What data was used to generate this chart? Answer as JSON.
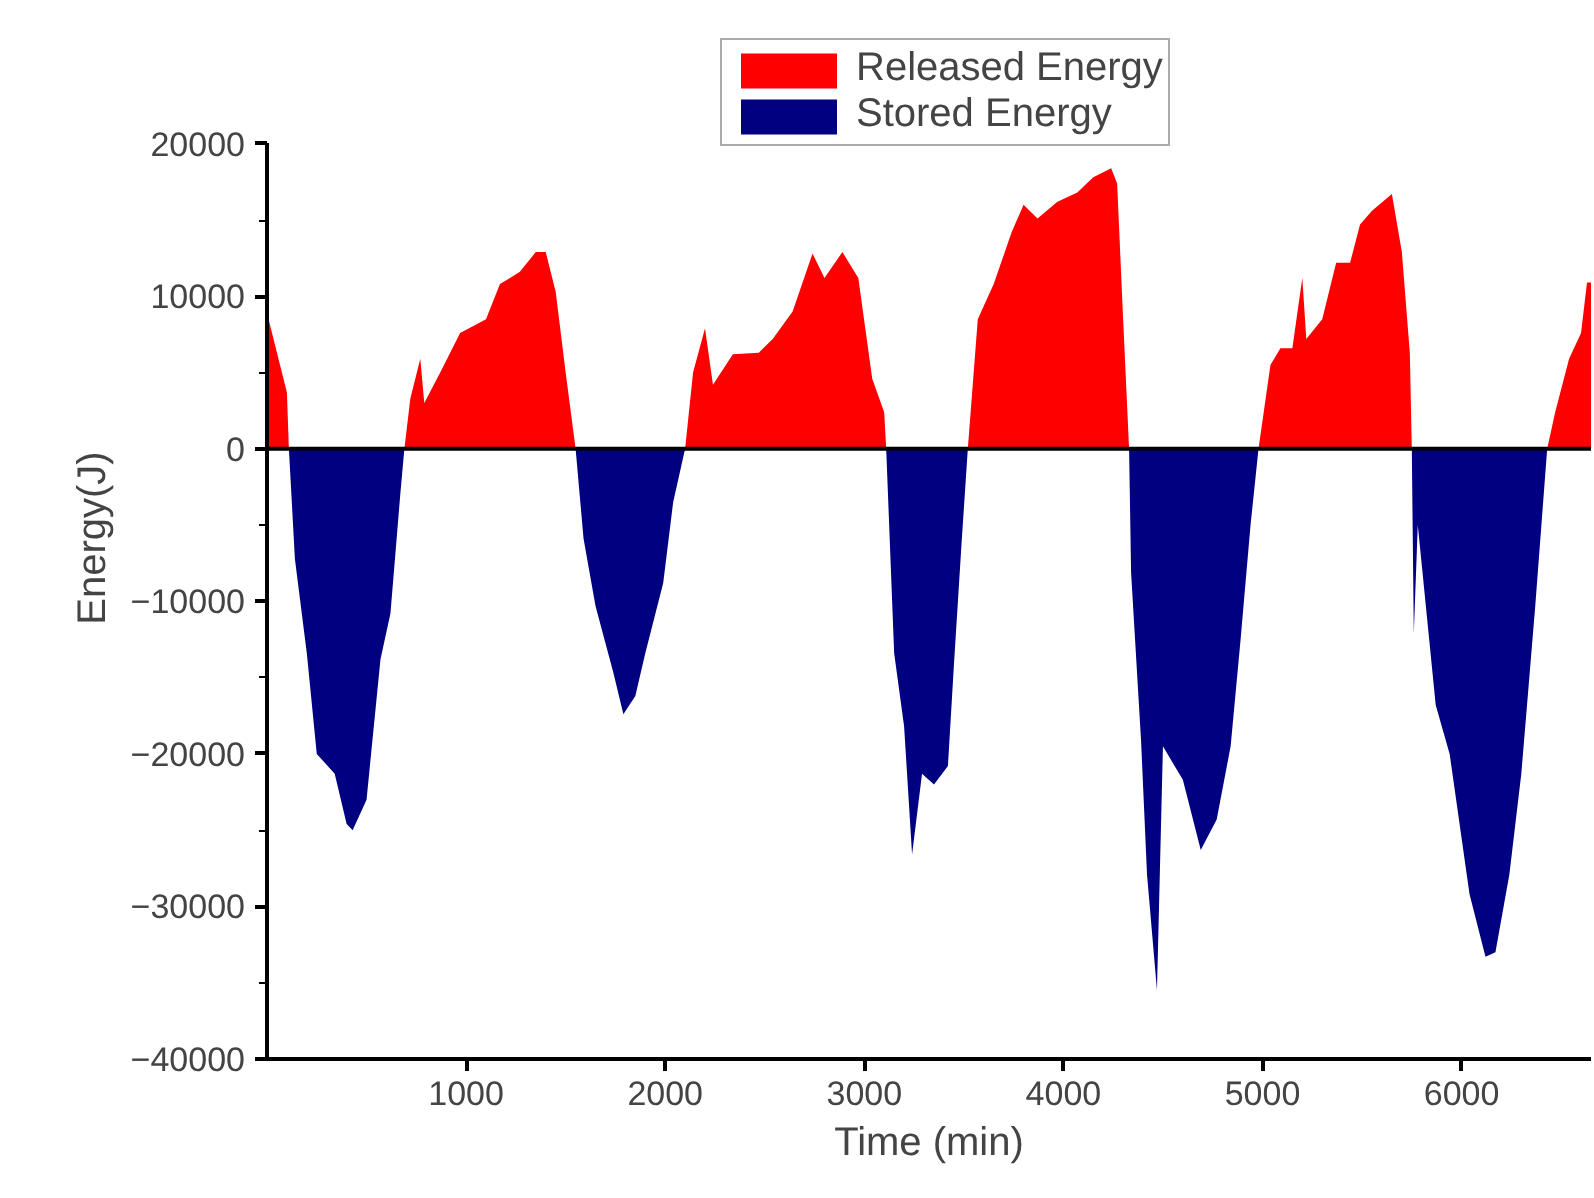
{
  "chart_data": {
    "type": "area",
    "xlabel": "Time (min)",
    "ylabel": "Energy(J)",
    "xlim": [
      0,
      6650
    ],
    "ylim": [
      -40000,
      20000
    ],
    "xticks": [
      1000,
      2000,
      3000,
      4000,
      5000,
      6000
    ],
    "yticks": [
      -40000,
      -30000,
      -20000,
      -10000,
      0,
      10000,
      20000
    ],
    "grid": false,
    "legend": "top right",
    "ref_lines": [
      {
        "axis": "y",
        "value": 0,
        "color": "#000000"
      }
    ],
    "series": [
      {
        "name": "Released Energy",
        "color": "#ff0000",
        "x": [
          0,
          100,
          110,
          690,
          720,
          770,
          790,
          870,
          970,
          1100,
          1170,
          1270,
          1350,
          1400,
          1450,
          1500,
          1550,
          2100,
          2140,
          2200,
          2240,
          2340,
          2470,
          2540,
          2640,
          2740,
          2800,
          2890,
          2970,
          3040,
          3100,
          3110,
          3520,
          3570,
          3650,
          3740,
          3800,
          3870,
          3970,
          4070,
          4150,
          4240,
          4270,
          4300,
          4330,
          4980,
          5040,
          5090,
          5150,
          5200,
          5220,
          5300,
          5370,
          5440,
          5490,
          5550,
          5650,
          5700,
          5740,
          5750,
          6430,
          6470,
          6540,
          6600,
          6630,
          6650
        ],
        "values": [
          8900,
          3700,
          0,
          0,
          3300,
          5900,
          3000,
          5000,
          7600,
          8500,
          10800,
          11600,
          12900,
          12900,
          10300,
          5000,
          0,
          0,
          5000,
          7900,
          4200,
          6200,
          6300,
          7200,
          9000,
          12800,
          11200,
          12900,
          11200,
          4600,
          2400,
          0,
          0,
          8500,
          10800,
          14200,
          16000,
          15100,
          16200,
          16800,
          17800,
          18400,
          17400,
          8500,
          0,
          0,
          5500,
          6600,
          6600,
          11200,
          7200,
          8500,
          12200,
          12200,
          14700,
          15600,
          16700,
          12900,
          6300,
          0,
          0,
          2400,
          5900,
          7600,
          10900,
          10900
        ]
      },
      {
        "name": "Stored Energy",
        "color": "#000080",
        "x": [
          110,
          140,
          200,
          250,
          340,
          400,
          430,
          500,
          570,
          620,
          670,
          690,
          1550,
          1590,
          1650,
          1740,
          1790,
          1850,
          1900,
          1990,
          2040,
          2100,
          3110,
          3150,
          3200,
          3240,
          3290,
          3350,
          3420,
          3450,
          3490,
          3520,
          4330,
          4340,
          4390,
          4420,
          4470,
          4500,
          4600,
          4690,
          4770,
          4840,
          4890,
          4940,
          4980,
          5750,
          5760,
          5780,
          5870,
          5940,
          6040,
          6120,
          6170,
          6240,
          6300,
          6370,
          6430
        ],
        "values": [
          0,
          -7200,
          -13400,
          -20000,
          -21300,
          -24600,
          -25000,
          -23000,
          -13800,
          -10800,
          -2900,
          0,
          0,
          -5900,
          -10300,
          -14700,
          -17400,
          -16200,
          -13400,
          -8800,
          -3500,
          0,
          0,
          -13400,
          -18200,
          -26600,
          -21300,
          -22000,
          -20800,
          -14200,
          -5900,
          0,
          0,
          -8100,
          -19100,
          -27900,
          -35500,
          -19500,
          -21700,
          -26300,
          -24300,
          -19500,
          -12500,
          -5000,
          0,
          0,
          -12100,
          -5000,
          -16800,
          -20000,
          -29200,
          -33300,
          -33000,
          -27900,
          -21300,
          -10300,
          0
        ]
      }
    ]
  }
}
